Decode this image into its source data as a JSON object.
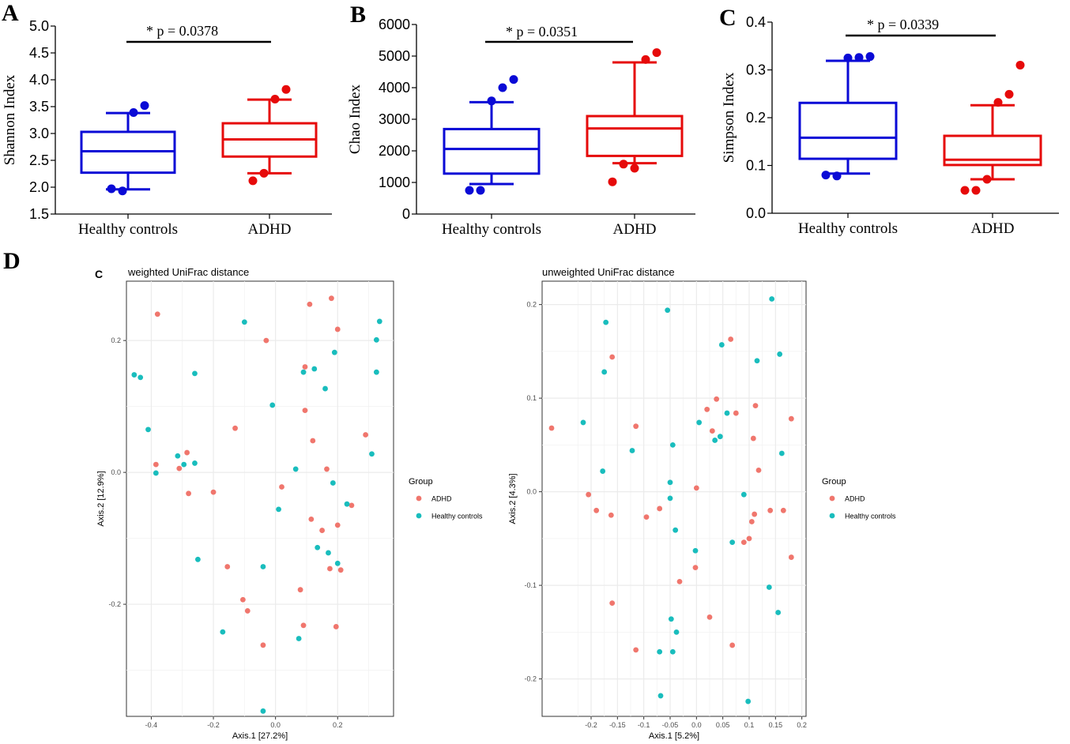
{
  "panels": {
    "A": "A",
    "B": "B",
    "C": "C",
    "D": "D",
    "inner_C": "C"
  },
  "colors": {
    "healthy_box": "#0a0ad6",
    "adhd_box": "#e60a0a",
    "adhd_point": "#f0766d",
    "healthy_point": "#19bdbd",
    "grid": "#ebebeb",
    "axis_gray": "#4d4d4d"
  },
  "chart_data": [
    {
      "id": "A",
      "type": "box",
      "categories": [
        "Healthy controls",
        "ADHD"
      ],
      "ylabel": "Shannon Index",
      "ylim": [
        1.5,
        5.0
      ],
      "yticks": [
        "1.5",
        "2.0",
        "2.5",
        "3.0",
        "3.5",
        "4.0",
        "4.5",
        "5.0"
      ],
      "annotation": "* p = 0.0378",
      "boxes": [
        {
          "name": "Healthy controls",
          "whisker_low": 1.96,
          "q1": 2.27,
          "median": 2.67,
          "q3": 3.03,
          "whisker_high": 3.38,
          "outliers": [
            1.97,
            1.93,
            3.39,
            3.52
          ]
        },
        {
          "name": "ADHD",
          "whisker_low": 2.26,
          "q1": 2.57,
          "median": 2.89,
          "q3": 3.19,
          "whisker_high": 3.63,
          "outliers": [
            2.12,
            2.26,
            3.64,
            3.82
          ]
        }
      ]
    },
    {
      "id": "B",
      "type": "box",
      "categories": [
        "Healthy controls",
        "ADHD"
      ],
      "ylabel": "Chao Index",
      "ylim": [
        0,
        6000
      ],
      "yticks": [
        "0",
        "1000",
        "2000",
        "3000",
        "4000",
        "5000",
        "6000"
      ],
      "annotation": "* p = 0.0351",
      "boxes": [
        {
          "name": "Healthy controls",
          "whisker_low": 950,
          "q1": 1280,
          "median": 2060,
          "q3": 2690,
          "whisker_high": 3540,
          "outliers": [
            750,
            750,
            3580,
            4000,
            4260
          ]
        },
        {
          "name": "ADHD",
          "whisker_low": 1610,
          "q1": 1840,
          "median": 2710,
          "q3": 3100,
          "whisker_high": 4800,
          "outliers": [
            1020,
            1580,
            1450,
            4890,
            5110
          ]
        }
      ]
    },
    {
      "id": "C",
      "type": "box",
      "categories": [
        "Healthy controls",
        "ADHD"
      ],
      "ylabel": "Simpson Index",
      "ylim": [
        0.0,
        0.4
      ],
      "yticks": [
        "0.0",
        "0.1",
        "0.2",
        "0.3",
        "0.4"
      ],
      "annotation": "* p = 0.0339",
      "boxes": [
        {
          "name": "Healthy controls",
          "whisker_low": 0.083,
          "q1": 0.114,
          "median": 0.158,
          "q3": 0.231,
          "whisker_high": 0.319,
          "outliers": [
            0.08,
            0.078,
            0.325,
            0.326,
            0.328
          ]
        },
        {
          "name": "ADHD",
          "whisker_low": 0.071,
          "q1": 0.101,
          "median": 0.112,
          "q3": 0.162,
          "whisker_high": 0.226,
          "outliers": [
            0.048,
            0.048,
            0.071,
            0.232,
            0.249,
            0.31
          ]
        }
      ]
    },
    {
      "id": "D1",
      "type": "scatter",
      "title": "weighted UniFrac distance",
      "xlabel": "Axis.1   [27.2%]",
      "ylabel": "Axis.2   [12.9%]",
      "xlim": [
        -0.48,
        0.38
      ],
      "ylim": [
        -0.37,
        0.29
      ],
      "xticks": [
        -0.4,
        -0.2,
        0.0,
        0.2
      ],
      "xticklabels": [
        "-0.4",
        "-0.2",
        "0.0",
        "0.2"
      ],
      "yticks": [
        -0.2,
        0.0,
        0.2
      ],
      "yticklabels": [
        "-0.2",
        "0.0",
        "0.2"
      ],
      "legend_title": "Group",
      "legend": [
        "ADHD",
        "Healthy controls"
      ],
      "series": [
        {
          "name": "ADHD",
          "points": [
            [
              -0.38,
              0.24
            ],
            [
              -0.385,
              0.012
            ],
            [
              -0.31,
              0.006
            ],
            [
              -0.285,
              0.03
            ],
            [
              -0.28,
              -0.032
            ],
            [
              -0.2,
              -0.03
            ],
            [
              -0.13,
              0.067
            ],
            [
              -0.155,
              -0.143
            ],
            [
              -0.105,
              -0.193
            ],
            [
              -0.09,
              -0.21
            ],
            [
              -0.03,
              0.2
            ],
            [
              -0.04,
              -0.262
            ],
            [
              0.02,
              -0.022
            ],
            [
              0.08,
              -0.178
            ],
            [
              0.095,
              0.094
            ],
            [
              0.095,
              0.16
            ],
            [
              0.09,
              -0.232
            ],
            [
              0.11,
              0.255
            ],
            [
              0.115,
              -0.071
            ],
            [
              0.12,
              0.048
            ],
            [
              0.15,
              -0.088
            ],
            [
              0.165,
              0.005
            ],
            [
              0.18,
              0.264
            ],
            [
              0.175,
              -0.146
            ],
            [
              0.2,
              0.217
            ],
            [
              0.2,
              -0.08
            ],
            [
              0.195,
              -0.234
            ],
            [
              0.21,
              -0.148
            ],
            [
              0.245,
              -0.05
            ],
            [
              0.29,
              0.057
            ]
          ]
        },
        {
          "name": "Healthy controls",
          "points": [
            [
              -0.455,
              0.148
            ],
            [
              -0.435,
              0.144
            ],
            [
              -0.41,
              0.065
            ],
            [
              -0.385,
              -0.001
            ],
            [
              -0.315,
              0.025
            ],
            [
              -0.295,
              0.012
            ],
            [
              -0.26,
              0.15
            ],
            [
              -0.26,
              0.014
            ],
            [
              -0.25,
              -0.132
            ],
            [
              -0.17,
              -0.242
            ],
            [
              -0.1,
              0.228
            ],
            [
              -0.01,
              0.102
            ],
            [
              -0.04,
              -0.143
            ],
            [
              -0.04,
              -0.362
            ],
            [
              0.01,
              -0.056
            ],
            [
              0.065,
              0.005
            ],
            [
              0.075,
              -0.252
            ],
            [
              0.09,
              0.152
            ],
            [
              0.125,
              0.157
            ],
            [
              0.135,
              -0.114
            ],
            [
              0.16,
              0.127
            ],
            [
              0.17,
              -0.122
            ],
            [
              0.185,
              -0.016
            ],
            [
              0.19,
              0.182
            ],
            [
              0.2,
              -0.138
            ],
            [
              0.23,
              -0.048
            ],
            [
              0.31,
              0.028
            ],
            [
              0.325,
              0.201
            ],
            [
              0.325,
              0.152
            ],
            [
              0.335,
              0.229
            ]
          ]
        }
      ]
    },
    {
      "id": "D2",
      "type": "scatter",
      "title": "unweighted UniFrac distance",
      "xlabel": "Axis.1   [5.2%]",
      "ylabel": "Axis.2   [4.3%]",
      "xlim": [
        -0.293,
        0.208
      ],
      "ylim": [
        -0.24,
        0.225
      ],
      "xticks": [
        -0.2,
        -0.15,
        -0.1,
        -0.05,
        0.0,
        0.05,
        0.1,
        0.15,
        0.2
      ],
      "xticklabels": [
        "-0.2",
        "-0.15",
        "-0.1",
        "-0.05",
        "0.0",
        "0.05",
        "0.1",
        "0.15",
        "0.2"
      ],
      "yticks": [
        -0.2,
        -0.1,
        0.0,
        0.1,
        0.2
      ],
      "yticklabels": [
        "-0.2",
        "-0.1",
        "0.0",
        "0.1",
        "0.2"
      ],
      "legend_title": "Group",
      "legend": [
        "ADHD",
        "Healthy controls"
      ],
      "series": [
        {
          "name": "ADHD",
          "points": [
            [
              -0.275,
              0.068
            ],
            [
              -0.205,
              -0.003
            ],
            [
              -0.19,
              -0.02
            ],
            [
              -0.16,
              0.144
            ],
            [
              -0.162,
              -0.025
            ],
            [
              -0.16,
              -0.119
            ],
            [
              -0.115,
              0.07
            ],
            [
              -0.115,
              -0.169
            ],
            [
              -0.095,
              -0.027
            ],
            [
              -0.07,
              -0.018
            ],
            [
              -0.032,
              -0.096
            ],
            [
              0.0,
              0.004
            ],
            [
              -0.002,
              -0.081
            ],
            [
              0.02,
              0.088
            ],
            [
              0.025,
              -0.134
            ],
            [
              0.03,
              0.065
            ],
            [
              0.038,
              0.099
            ],
            [
              0.065,
              0.163
            ],
            [
              0.068,
              -0.164
            ],
            [
              0.075,
              0.084
            ],
            [
              0.09,
              -0.054
            ],
            [
              0.1,
              -0.05
            ],
            [
              0.105,
              -0.032
            ],
            [
              0.108,
              0.057
            ],
            [
              0.112,
              0.092
            ],
            [
              0.11,
              -0.024
            ],
            [
              0.118,
              0.023
            ],
            [
              0.14,
              -0.02
            ],
            [
              0.165,
              -0.02
            ],
            [
              0.18,
              0.078
            ],
            [
              0.18,
              -0.07
            ]
          ]
        },
        {
          "name": "Healthy controls",
          "points": [
            [
              -0.215,
              0.074
            ],
            [
              -0.172,
              0.181
            ],
            [
              -0.175,
              0.128
            ],
            [
              -0.178,
              0.022
            ],
            [
              -0.122,
              0.044
            ],
            [
              -0.068,
              -0.218
            ],
            [
              -0.07,
              -0.171
            ],
            [
              -0.055,
              0.194
            ],
            [
              -0.05,
              -0.007
            ],
            [
              -0.05,
              0.01
            ],
            [
              -0.048,
              -0.136
            ],
            [
              -0.045,
              0.05
            ],
            [
              -0.045,
              -0.171
            ],
            [
              -0.04,
              -0.041
            ],
            [
              -0.038,
              -0.15
            ],
            [
              -0.002,
              -0.063
            ],
            [
              0.005,
              0.074
            ],
            [
              0.035,
              0.055
            ],
            [
              0.048,
              0.157
            ],
            [
              0.045,
              0.059
            ],
            [
              0.058,
              0.084
            ],
            [
              0.068,
              -0.054
            ],
            [
              0.09,
              -0.003
            ],
            [
              0.098,
              -0.224
            ],
            [
              0.115,
              0.14
            ],
            [
              0.138,
              -0.102
            ],
            [
              0.143,
              0.206
            ],
            [
              0.155,
              -0.129
            ],
            [
              0.158,
              0.147
            ],
            [
              0.162,
              0.041
            ]
          ]
        }
      ]
    }
  ]
}
